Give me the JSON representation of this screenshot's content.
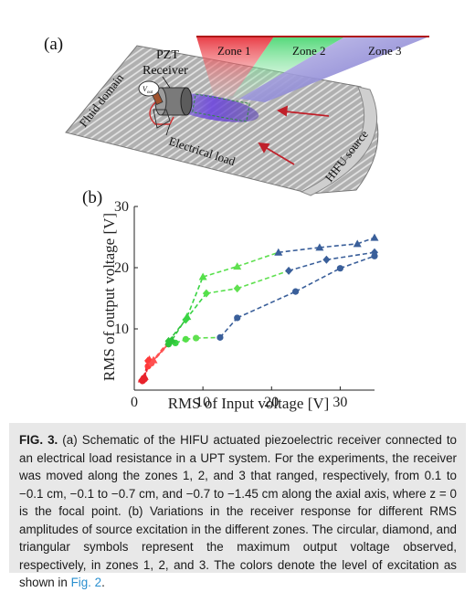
{
  "panel_a": {
    "label": "(a)",
    "zones": [
      {
        "label": "Zone 1",
        "color": "#e8323c"
      },
      {
        "label": "Zone 2",
        "color": "#3fd46a"
      },
      {
        "label": "Zone 3",
        "color": "#6a64c8"
      }
    ],
    "pzt_label_line1": "PZT",
    "pzt_label_line2": "Receiver",
    "voltage_symbol": "V",
    "voltage_subscript": "out",
    "fluid_label": "Fluid domain",
    "load_label": "Electrical load",
    "source_label": "HIFU source",
    "arrow_color": "#c0202a"
  },
  "panel_b": {
    "label": "(b)"
  },
  "chart_data": {
    "type": "line",
    "xlabel": "RMS of Input voltage [V]",
    "ylabel": "RMS of output voltage [V]",
    "xlim": [
      0,
      35
    ],
    "ylim": [
      0,
      30
    ],
    "xticks": [
      0,
      10,
      20,
      30
    ],
    "yticks": [
      10,
      20,
      30
    ],
    "grid": false,
    "series": [
      {
        "marker": "circle",
        "points": [
          [
            1.2,
            1.5
          ],
          [
            1.5,
            1.8
          ],
          [
            2.0,
            3.9
          ],
          [
            2.5,
            4.4
          ],
          [
            5.0,
            7.5
          ],
          [
            6.0,
            7.7
          ],
          [
            7.5,
            8.3
          ],
          [
            9.0,
            8.5
          ],
          [
            12.5,
            8.6
          ],
          [
            15.0,
            11.8
          ],
          [
            23.5,
            16.1
          ],
          [
            30.0,
            19.9
          ],
          [
            35.0,
            21.9
          ]
        ]
      },
      {
        "marker": "diamond",
        "points": [
          [
            1.1,
            1.6
          ],
          [
            1.4,
            2.0
          ],
          [
            2.0,
            4.8
          ],
          [
            2.5,
            4.5
          ],
          [
            5.0,
            8.0
          ],
          [
            7.5,
            11.5
          ],
          [
            10.5,
            15.8
          ],
          [
            15.0,
            16.6
          ],
          [
            22.5,
            19.5
          ],
          [
            28.0,
            21.3
          ],
          [
            35.0,
            22.5
          ]
        ]
      },
      {
        "marker": "triangle",
        "points": [
          [
            1.1,
            1.8
          ],
          [
            1.5,
            2.2
          ],
          [
            2.2,
            5.0
          ],
          [
            2.8,
            4.9
          ],
          [
            5.5,
            8.2
          ],
          [
            7.7,
            12.0
          ],
          [
            10.0,
            18.5
          ],
          [
            15.0,
            20.2
          ],
          [
            21.0,
            22.5
          ],
          [
            27.0,
            23.3
          ],
          [
            32.5,
            23.9
          ],
          [
            35.0,
            24.9
          ]
        ]
      }
    ],
    "level_colors": [
      "#e8222c",
      "#e8222c",
      "#ff3a3a",
      "#ff5050",
      "#2ec43a",
      "#3ad444",
      "#55e04a",
      "#60e050",
      "#3a5f9a",
      "#3a5f9a",
      "#3a5f9a",
      "#3a5f9a",
      "#3a5f9a"
    ]
  },
  "caption": {
    "fig_label": "FIG. 3.",
    "text_1": " (a) Schematic of the HIFU actuated piezoelectric receiver connected to an electrical load resistance in a UPT system. For the experiments, the receiver was moved along the zones 1, 2, and 3 that ranged, respectively, from 0.1 to −0.1 cm, −0.1 to −0.7 cm, and −0.7 to −1.45 cm along the axial axis, where z = 0 is the focal point. (b) Variations in the receiver response for different RMS amplitudes of source excitation in the different zones. The circular, diamond, and triangular symbols represent the maximum output voltage observed, respectively, in zones 1, 2, and 3. The colors denote the level of excitation as shown in ",
    "link": "Fig. 2",
    "text_2": "."
  }
}
